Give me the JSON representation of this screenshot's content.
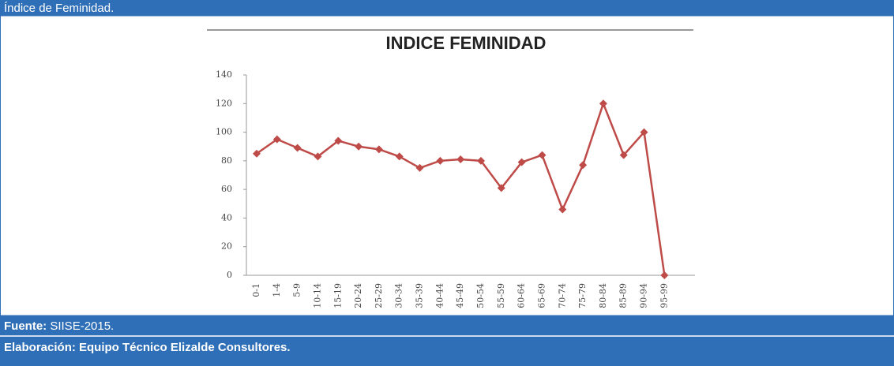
{
  "header": {
    "title": "Índice de Feminidad."
  },
  "chart_data": {
    "type": "line",
    "title": "INDICE FEMINIDAD",
    "categories": [
      "0-1",
      "1-4",
      "5-9",
      "10-14",
      "15-19",
      "20-24",
      "25-29",
      "30-34",
      "35-39",
      "40-44",
      "45-49",
      "50-54",
      "55-59",
      "60-64",
      "65-69",
      "70-74",
      "75-79",
      "80-84",
      "85-89",
      "90-94",
      "95-99"
    ],
    "values": [
      85,
      95,
      89,
      83,
      94,
      90,
      88,
      83,
      75,
      80,
      81,
      80,
      61,
      79,
      84,
      46,
      77,
      120,
      84,
      100,
      0
    ],
    "color": "#be4b48",
    "ylim": [
      0,
      140
    ],
    "yticks": [
      0,
      20,
      40,
      60,
      80,
      100,
      120,
      140
    ],
    "grid": false
  },
  "footer": {
    "source_label": "Fuente:",
    "source": "SIISE-2015.",
    "credit": "Elaboración: Equipo Técnico Elizalde Consultores."
  }
}
